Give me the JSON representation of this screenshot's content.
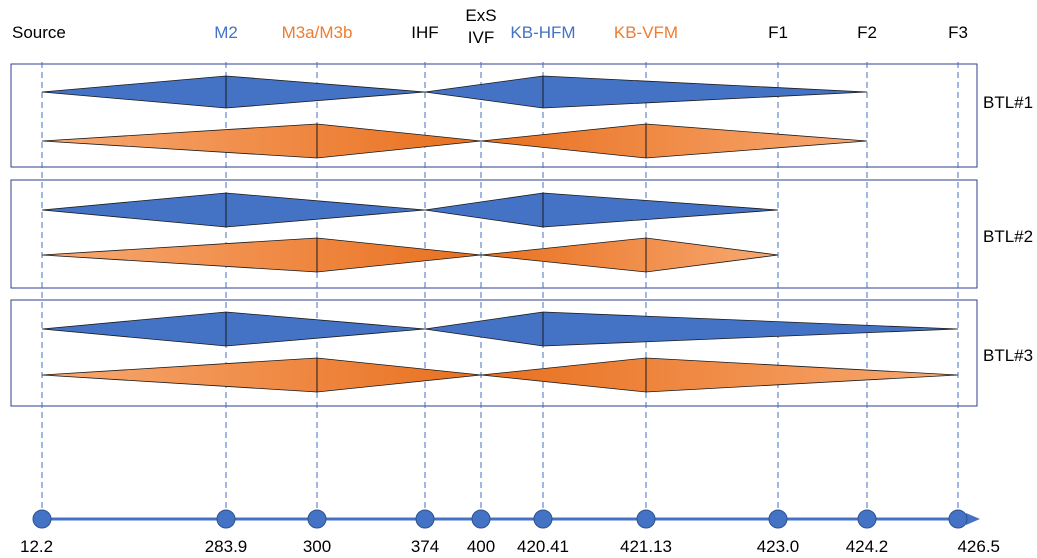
{
  "colors": {
    "blue": "#4472C4",
    "orange": "#ED7D31",
    "guide": "#4472C4",
    "black": "#000000"
  },
  "elements": [
    {
      "label": "Source",
      "lines": [
        "Source"
      ],
      "position": "12.2",
      "color": "black"
    },
    {
      "label": "M2",
      "lines": [
        "M2"
      ],
      "position": "283.9",
      "color": "blue"
    },
    {
      "label": "M3a/M3b",
      "lines": [
        "M3a/M3b"
      ],
      "position": "300",
      "color": "orange"
    },
    {
      "label": "IHF",
      "lines": [
        "IHF"
      ],
      "position": "374",
      "color": "black"
    },
    {
      "label": "ExS IVF",
      "lines": [
        "ExS",
        "IVF"
      ],
      "position": "400",
      "color": "black"
    },
    {
      "label": "KB-HFM",
      "lines": [
        "KB-HFM"
      ],
      "position": "420.41",
      "color": "blue"
    },
    {
      "label": "KB-VFM",
      "lines": [
        "KB-VFM"
      ],
      "position": "421.13",
      "color": "orange"
    },
    {
      "label": "F1",
      "lines": [
        "F1"
      ],
      "position": "423.0",
      "color": "black"
    },
    {
      "label": "F2",
      "lines": [
        "F2"
      ],
      "position": "424.2",
      "color": "black"
    },
    {
      "label": "F3",
      "lines": [
        "F3"
      ],
      "position": "426.5",
      "color": "black"
    }
  ],
  "beamlines": [
    {
      "name": "BTL#1",
      "blue_path": {
        "start": "Source",
        "focus": "M2",
        "waist": "IHF",
        "focus2": "KB-HFM",
        "end": "F2"
      },
      "orange_path": {
        "start": "Source",
        "focus": "M3a/M3b",
        "waist": "ExS IVF",
        "focus2": "KB-VFM",
        "end": "F2"
      }
    },
    {
      "name": "BTL#2",
      "blue_path": {
        "start": "Source",
        "focus": "M2",
        "waist": "IHF",
        "focus2": "KB-HFM",
        "end": "F1"
      },
      "orange_path": {
        "start": "Source",
        "focus": "M3a/M3b",
        "waist": "ExS IVF",
        "focus2": "KB-VFM",
        "end": "F1"
      }
    },
    {
      "name": "BTL#3",
      "blue_path": {
        "start": "Source",
        "focus": "M2",
        "waist": "IHF",
        "focus2": "KB-HFM",
        "end": "F3"
      },
      "orange_path": {
        "start": "Source",
        "focus": "M3a/M3b",
        "waist": "ExS IVF",
        "focus2": "KB-VFM",
        "end": "F3"
      }
    }
  ]
}
